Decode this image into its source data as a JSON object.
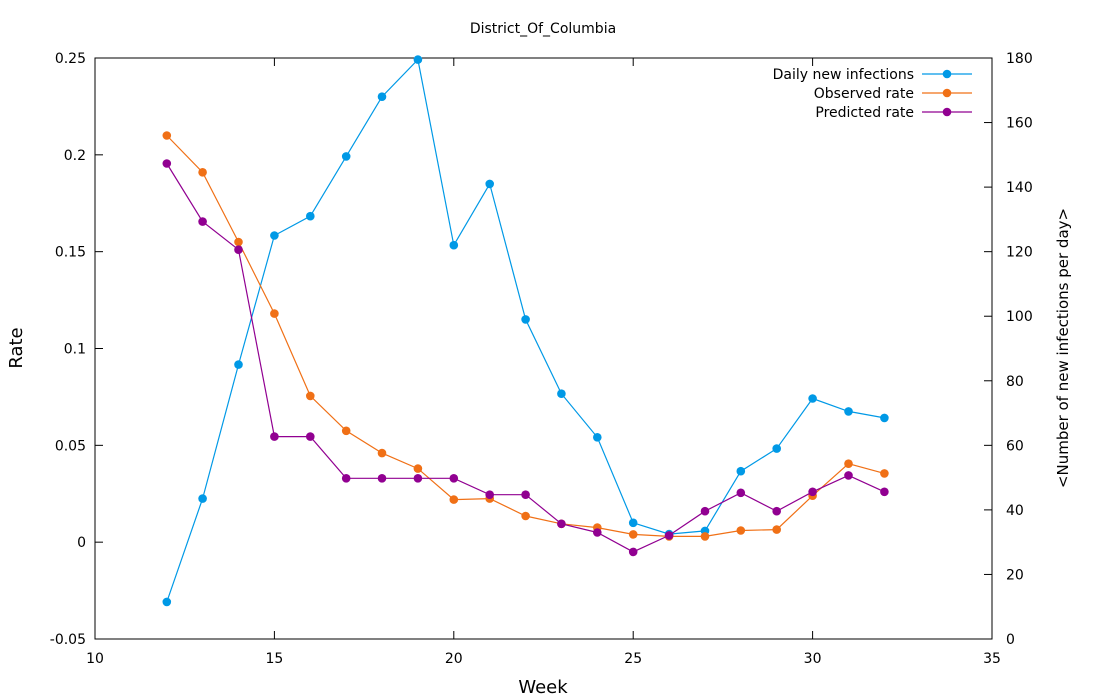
{
  "chart_data": {
    "type": "line",
    "title": "District_Of_Columbia",
    "xlabel": "Week",
    "ylabel": "Rate",
    "y2label": "<Number of new infections per day>",
    "xlim": [
      10,
      35
    ],
    "ylim": [
      -0.05,
      0.25
    ],
    "y2lim": [
      0,
      180
    ],
    "xticks": [
      10,
      15,
      20,
      25,
      30,
      35
    ],
    "yticks": [
      -0.05,
      0,
      0.05,
      0.1,
      0.15,
      0.2,
      0.25
    ],
    "y2ticks": [
      0,
      20,
      40,
      60,
      80,
      100,
      120,
      140,
      160,
      180
    ],
    "xtick_labels": [
      "10",
      "15",
      "20",
      "25",
      "30",
      "35"
    ],
    "ytick_labels": [
      "-0.05",
      "0",
      "0.05",
      "0.1",
      "0.15",
      "0.2",
      "0.25"
    ],
    "y2tick_labels": [
      "0",
      "20",
      "40",
      "60",
      "80",
      "100",
      "120",
      "140",
      "160",
      "180"
    ],
    "grid": false,
    "legend_position": "top-right",
    "x": [
      12,
      13,
      14,
      15,
      16,
      17,
      18,
      19,
      20,
      21,
      22,
      23,
      24,
      25,
      26,
      27,
      28,
      29,
      30,
      31,
      32
    ],
    "series": [
      {
        "name": "Daily new infections",
        "axis": "y2",
        "color": "#0099e6",
        "values": [
          11.5,
          43.5,
          85,
          125,
          131,
          149.5,
          168,
          179.5,
          122,
          141,
          99,
          76,
          62.5,
          36,
          32.5,
          33.5,
          52,
          59,
          74.5,
          70.5,
          68.5
        ]
      },
      {
        "name": "Observed rate",
        "axis": "y",
        "color": "#f07016",
        "values": [
          0.21,
          0.191,
          0.155,
          0.118,
          0.0755,
          0.0575,
          0.046,
          0.038,
          0.022,
          0.0225,
          0.0135,
          0.0095,
          0.0075,
          0.004,
          0.003,
          0.003,
          0.006,
          0.0065,
          0.024,
          0.0405,
          0.0355
        ]
      },
      {
        "name": "Predicted rate",
        "axis": "y",
        "color": "#910091",
        "values": [
          0.1955,
          0.1655,
          0.151,
          0.0545,
          0.0545,
          0.033,
          0.033,
          0.033,
          0.033,
          0.0245,
          0.0245,
          0.0095,
          0.005,
          -0.005,
          0.0035,
          0.016,
          0.0255,
          0.016,
          0.026,
          0.0345,
          0.026
        ]
      }
    ]
  }
}
